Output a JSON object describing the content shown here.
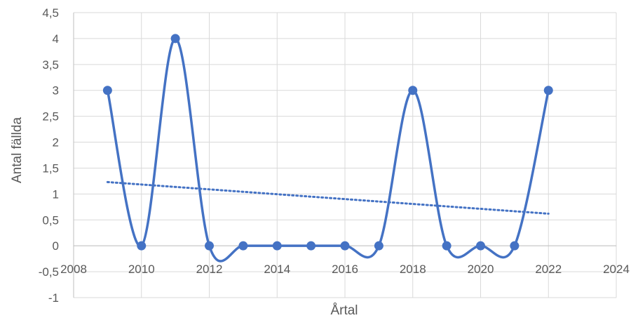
{
  "chart_data": {
    "type": "scatter",
    "title": "",
    "xlabel": "Årtal",
    "ylabel": "Antal fällda",
    "xlim": [
      2008,
      2024
    ],
    "ylim": [
      -1,
      4.5
    ],
    "x_ticks": [
      2008,
      2010,
      2012,
      2014,
      2016,
      2018,
      2020,
      2022,
      2024
    ],
    "x_tick_labels": [
      "2008",
      "2010",
      "2012",
      "2014",
      "2016",
      "2018",
      "2020",
      "2022",
      "2024"
    ],
    "y_ticks": [
      -1,
      -0.5,
      0,
      0.5,
      1,
      1.5,
      2,
      2.5,
      3,
      3.5,
      4,
      4.5
    ],
    "y_tick_labels": [
      "-1",
      "-0,5",
      "0",
      "0,5",
      "1",
      "1,5",
      "2",
      "2,5",
      "3",
      "3,5",
      "4",
      "4,5"
    ],
    "grid": true,
    "legend": "none",
    "series": [
      {
        "style": "smooth-line-with-markers",
        "color": "#4472C4",
        "x": [
          2009,
          2010,
          2011,
          2012,
          2013,
          2014,
          2015,
          2016,
          2017,
          2018,
          2019,
          2020,
          2021,
          2022
        ],
        "y": [
          3,
          0,
          4,
          0,
          0,
          0,
          0,
          0,
          0,
          3,
          0,
          0,
          0,
          3
        ]
      }
    ],
    "trendline": {
      "type": "linear",
      "style": "dotted",
      "color": "#4472C4",
      "x": [
        2009,
        2022
      ],
      "y": [
        1.23,
        0.62
      ]
    }
  }
}
